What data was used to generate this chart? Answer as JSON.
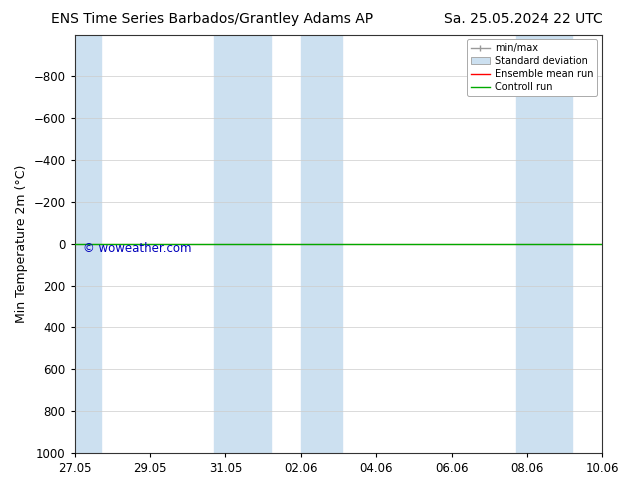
{
  "title_left": "ENS Time Series Barbados/Grantley Adams AP",
  "title_right": "Sa. 25.05.2024 22 UTC",
  "ylabel": "Min Temperature 2m (°C)",
  "ylim_bottom": 1000,
  "ylim_top": -1000,
  "yticks": [
    -800,
    -600,
    -400,
    -200,
    0,
    200,
    400,
    600,
    800,
    1000
  ],
  "x_start": 0.0,
  "x_end": 14.0,
  "xtick_labels": [
    "27.05",
    "29.05",
    "31.05",
    "02.06",
    "04.06",
    "06.06",
    "08.06",
    "10.06"
  ],
  "xtick_positions": [
    0.0,
    2.0,
    4.0,
    6.0,
    8.0,
    10.0,
    12.0,
    14.0
  ],
  "shaded_columns": [
    [
      -0.2,
      0.7
    ],
    [
      3.7,
      5.2
    ],
    [
      6.0,
      7.1
    ],
    [
      11.7,
      13.2
    ]
  ],
  "shade_color": "#cce0f0",
  "bg_color": "#ffffff",
  "green_line_y": 0,
  "red_line_y": 0,
  "watermark": "© woweather.com",
  "watermark_color": "#0000bb",
  "title_fontsize": 10,
  "tick_fontsize": 8.5,
  "ylabel_fontsize": 9
}
